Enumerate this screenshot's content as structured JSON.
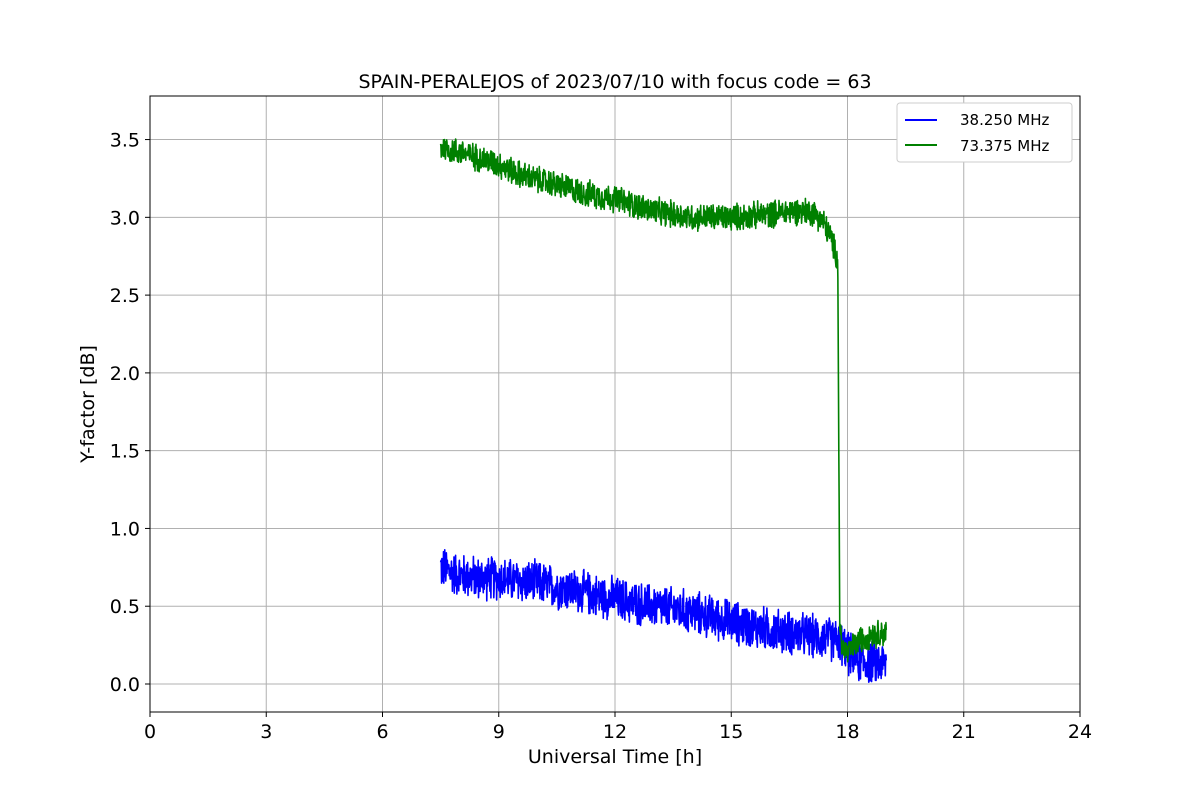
{
  "chart_data": {
    "type": "line",
    "title": "SPAIN-PERALEJOS of 2023/07/10 with focus code = 63",
    "xlabel": "Universal Time [h]",
    "ylabel": "Y-factor [dB]",
    "xlim": [
      0,
      24
    ],
    "ylim": [
      -0.18,
      3.78
    ],
    "xticks": [
      0,
      3,
      6,
      9,
      12,
      15,
      18,
      21,
      24
    ],
    "xtick_labels": [
      "0",
      "3",
      "6",
      "9",
      "12",
      "15",
      "18",
      "21",
      "24"
    ],
    "yticks": [
      0.0,
      0.5,
      1.0,
      1.5,
      2.0,
      2.5,
      3.0,
      3.5
    ],
    "ytick_labels": [
      "0.0",
      "0.5",
      "1.0",
      "1.5",
      "2.0",
      "2.5",
      "3.0",
      "3.5"
    ],
    "grid": true,
    "legend_position": "top-right",
    "series": [
      {
        "name": "38.250 MHz",
        "color": "#0000ff",
        "x": [
          7.5,
          7.75,
          8.0,
          8.5,
          9.0,
          9.5,
          10.0,
          10.5,
          11.0,
          11.5,
          12.0,
          12.5,
          13.0,
          13.5,
          14.0,
          14.5,
          15.0,
          15.5,
          16.0,
          16.5,
          17.0,
          17.5,
          17.8,
          18.0,
          18.3,
          18.6,
          19.0
        ],
        "y": [
          0.75,
          0.72,
          0.7,
          0.68,
          0.68,
          0.66,
          0.65,
          0.62,
          0.6,
          0.57,
          0.55,
          0.52,
          0.5,
          0.48,
          0.46,
          0.43,
          0.4,
          0.37,
          0.35,
          0.33,
          0.31,
          0.29,
          0.28,
          0.2,
          0.15,
          0.14,
          0.13
        ],
        "noise": 0.16
      },
      {
        "name": "73.375 MHz",
        "color": "#008000",
        "x": [
          7.5,
          8.0,
          8.5,
          9.0,
          9.5,
          10.0,
          10.5,
          11.0,
          11.5,
          12.0,
          12.5,
          13.0,
          13.5,
          14.0,
          14.5,
          15.0,
          15.5,
          16.0,
          16.5,
          17.0,
          17.2,
          17.4,
          17.6,
          17.75,
          17.8,
          17.85,
          18.0,
          18.3,
          18.6,
          19.0
        ],
        "y": [
          3.45,
          3.42,
          3.38,
          3.34,
          3.28,
          3.24,
          3.21,
          3.17,
          3.14,
          3.12,
          3.08,
          3.04,
          3.02,
          3.0,
          3.0,
          3.0,
          3.01,
          3.02,
          3.04,
          3.04,
          3.02,
          2.96,
          2.85,
          2.72,
          0.4,
          0.25,
          0.2,
          0.28,
          0.32,
          0.33
        ],
        "noise": 0.1
      }
    ]
  }
}
